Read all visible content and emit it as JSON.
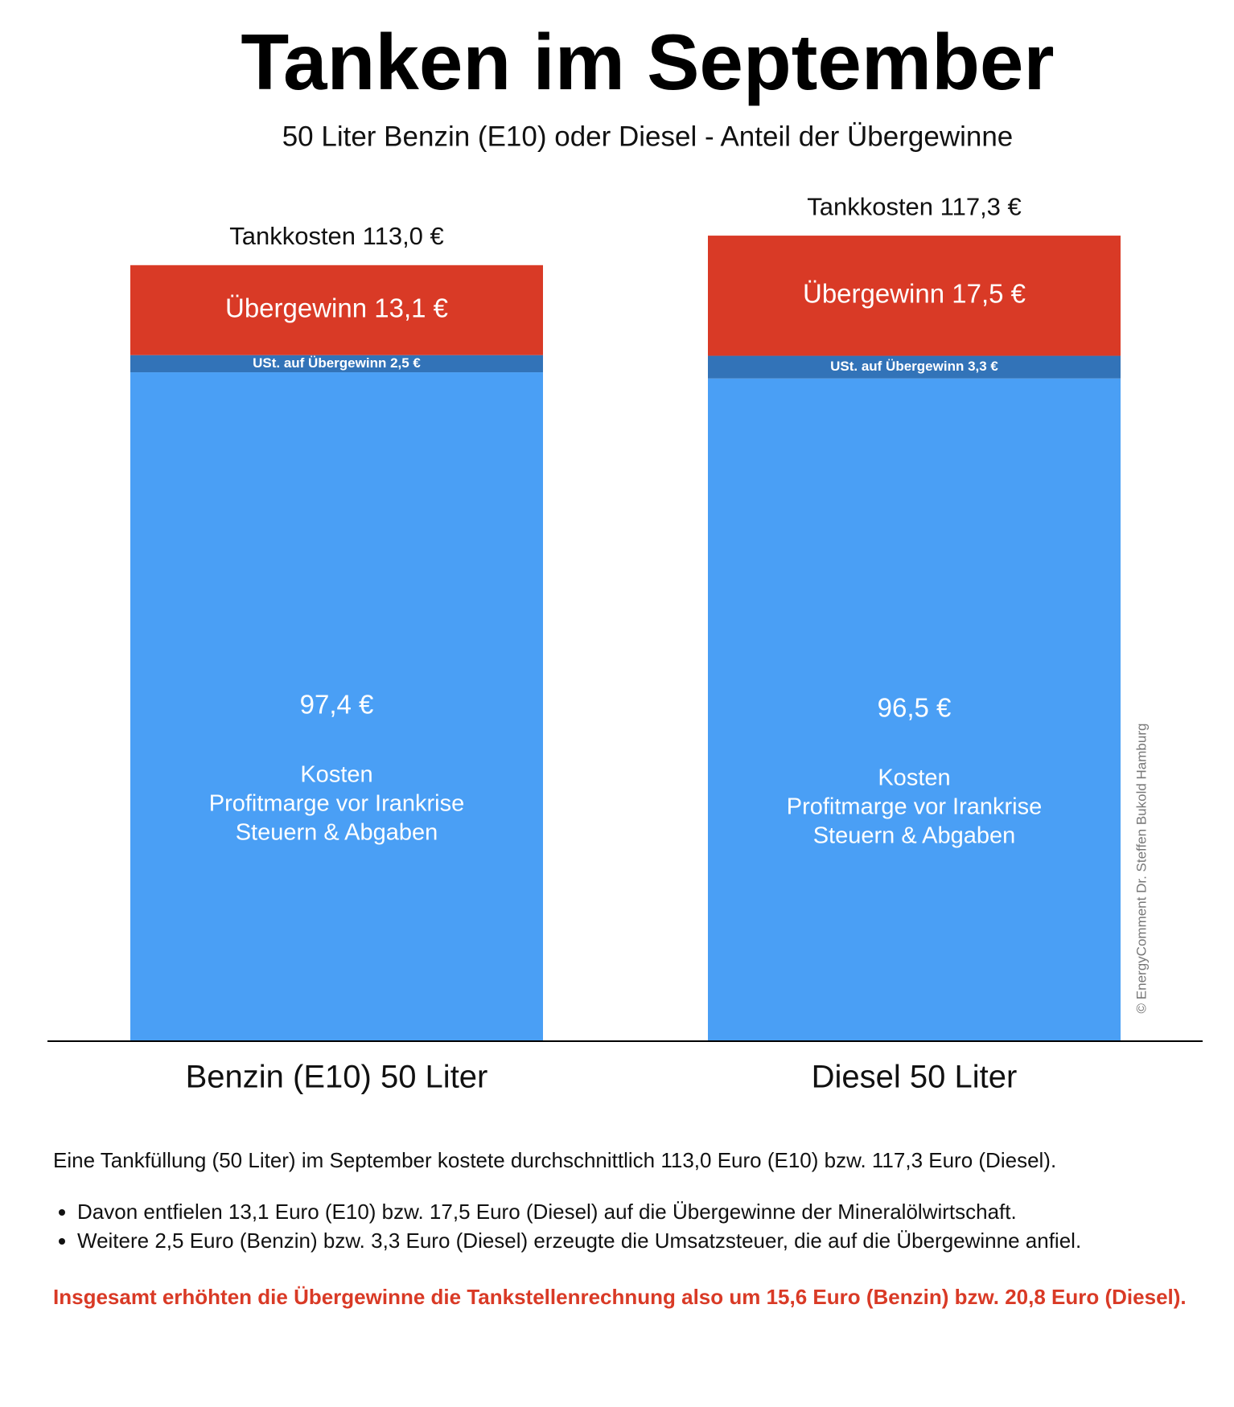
{
  "chart_data": {
    "type": "stacked-bar",
    "title": "Tanken im September",
    "subtitle": "50 Liter Benzin (E10) oder Diesel - Anteil der Übergewinne",
    "categories": [
      "Benzin (E10) 50 Liter",
      "Diesel 50 Liter"
    ],
    "total_labels": [
      "Tankkosten 113,0 €",
      "Tankkosten 117,3 €"
    ],
    "series": [
      {
        "color": "#4a9ff5",
        "values": [
          97.4,
          96.5
        ],
        "value_labels": [
          "97,4 €",
          "96,5 €"
        ],
        "description": [
          "Kosten",
          "Profitmarge vor Irankrise",
          "Steuern & Abgaben"
        ]
      },
      {
        "color": "#3273b8",
        "values": [
          2.5,
          3.3
        ],
        "value_labels": [
          "USt. auf Übergewinn 2,5 €",
          "USt. auf Übergewinn 3,3 €"
        ]
      },
      {
        "color": "#d93a26",
        "values": [
          13.1,
          17.5
        ],
        "value_labels": [
          "Übergewinn 13,1 €",
          "Übergewinn 17,5 €"
        ]
      }
    ],
    "ylim": [
      0,
      120
    ],
    "credit": "© EnergyComment Dr. Steffen Bukold Hamburg"
  },
  "notes": {
    "intro": "Eine Tankfüllung (50 Liter) im September kostete durchschnittlich 113,0 Euro (E10) bzw. 117,3 Euro (Diesel).",
    "bullets": [
      "Davon entfielen 13,1 Euro (E10) bzw. 17,5 Euro (Diesel) auf die Übergewinne der Mineralölwirtschaft.",
      "Weitere 2,5 Euro (Benzin) bzw. 3,3 Euro (Diesel) erzeugte die Umsatzsteuer, die auf die Übergewinne anfiel."
    ],
    "conclusion": "Insgesamt erhöhten die Übergewinne die Tankstellenrechnung also um 15,6 Euro (Benzin) bzw. 20,8 Euro (Diesel)."
  }
}
